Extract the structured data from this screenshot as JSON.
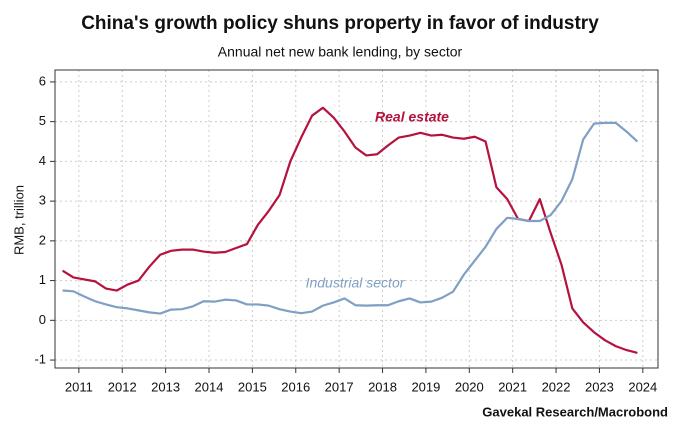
{
  "chart_data": {
    "type": "line",
    "title": "China's growth policy shuns property in favor of industry",
    "subtitle": "Annual net new bank lending, by sector",
    "y_label": "RMB, trillion",
    "source": "Gavekal Research/Macrobond",
    "x": [
      2011.125,
      2011.375,
      2011.625,
      2011.875,
      2012.125,
      2012.375,
      2012.625,
      2012.875,
      2013.125,
      2013.375,
      2013.625,
      2013.875,
      2014.125,
      2014.375,
      2014.625,
      2014.875,
      2015.125,
      2015.375,
      2015.625,
      2015.875,
      2016.125,
      2016.375,
      2016.625,
      2016.875,
      2017.125,
      2017.375,
      2017.625,
      2017.875,
      2018.125,
      2018.375,
      2018.625,
      2018.875,
      2019.125,
      2019.375,
      2019.625,
      2019.875,
      2020.125,
      2020.375,
      2020.625,
      2020.875,
      2021.125,
      2021.375,
      2021.625,
      2021.875,
      2022.125,
      2022.375,
      2022.625,
      2022.875,
      2023.125,
      2023.375,
      2023.625,
      2023.875,
      2024.125,
      2024.375
    ],
    "series": [
      {
        "name": "Real estate",
        "color": "#b5123e",
        "values": [
          1.25,
          1.08,
          1.03,
          0.98,
          0.8,
          0.75,
          0.9,
          1.0,
          1.35,
          1.65,
          1.75,
          1.78,
          1.78,
          1.73,
          1.7,
          1.72,
          1.82,
          1.92,
          2.4,
          2.75,
          3.15,
          4.0,
          4.6,
          5.15,
          5.35,
          5.1,
          4.75,
          4.35,
          4.15,
          4.18,
          4.4,
          4.6,
          4.65,
          4.72,
          4.65,
          4.67,
          4.6,
          4.57,
          4.62,
          4.5,
          3.35,
          3.05,
          2.55,
          2.5,
          3.05,
          2.2,
          1.4,
          0.3,
          -0.05,
          -0.3,
          -0.5,
          -0.65,
          -0.75,
          -0.82
        ]
      },
      {
        "name": "Industrial sector",
        "color": "#7f9fc4",
        "values": [
          0.75,
          0.73,
          0.6,
          0.48,
          0.4,
          0.33,
          0.3,
          0.25,
          0.2,
          0.17,
          0.27,
          0.28,
          0.35,
          0.48,
          0.47,
          0.52,
          0.5,
          0.4,
          0.4,
          0.37,
          0.28,
          0.22,
          0.18,
          0.22,
          0.37,
          0.45,
          0.55,
          0.38,
          0.37,
          0.38,
          0.38,
          0.48,
          0.55,
          0.45,
          0.47,
          0.57,
          0.72,
          1.15,
          1.5,
          1.85,
          2.3,
          2.58,
          2.55,
          2.5,
          2.5,
          2.65,
          3.0,
          3.55,
          4.55,
          4.95,
          4.97,
          4.97,
          4.75,
          4.5
        ]
      }
    ],
    "xlim": [
      2010.95,
      2024.85
    ],
    "xticks": [
      {
        "value": 2011.5,
        "label": "2011"
      },
      {
        "value": 2012.5,
        "label": "2012"
      },
      {
        "value": 2013.5,
        "label": "2013"
      },
      {
        "value": 2014.5,
        "label": "2014"
      },
      {
        "value": 2015.5,
        "label": "2015"
      },
      {
        "value": 2016.5,
        "label": "2016"
      },
      {
        "value": 2017.5,
        "label": "2017"
      },
      {
        "value": 2018.5,
        "label": "2018"
      },
      {
        "value": 2019.5,
        "label": "2019"
      },
      {
        "value": 2020.5,
        "label": "2020"
      },
      {
        "value": 2021.5,
        "label": "2021"
      },
      {
        "value": 2022.5,
        "label": "2022"
      },
      {
        "value": 2023.5,
        "label": "2023"
      },
      {
        "value": 2024.5,
        "label": "2024"
      }
    ],
    "ylim": [
      -1.2,
      6.3
    ],
    "yticks": [
      -1,
      0,
      1,
      2,
      3,
      4,
      5,
      6
    ],
    "grid": true
  }
}
